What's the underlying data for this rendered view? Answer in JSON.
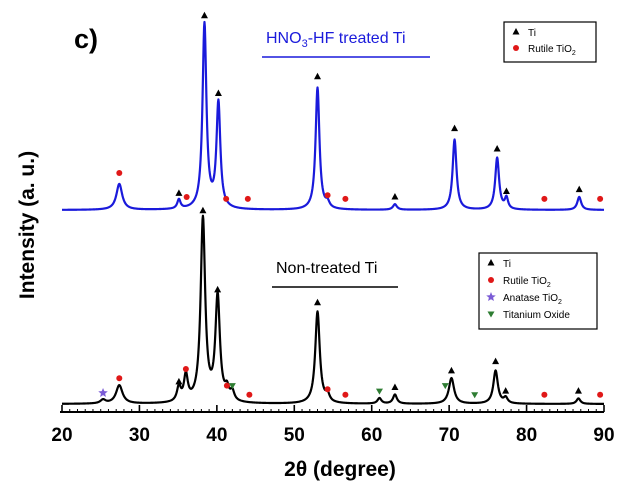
{
  "chart_data": {
    "type": "line",
    "panel_label": "c)",
    "xlabel": "2θ (degree)",
    "ylabel": "Intensity (a. u.)",
    "xlim": [
      20,
      90
    ],
    "xticks": [
      20,
      30,
      40,
      50,
      60,
      70,
      80,
      90
    ],
    "grid": false,
    "series": [
      {
        "name": "HNO3-HF treated Ti",
        "title_parts": [
          "HNO",
          "3",
          "-HF treated Ti"
        ],
        "color": "#1a1adb",
        "baseline": 0.0,
        "peaks": [
          {
            "x": 27.4,
            "h": 0.14,
            "w": 0.45
          },
          {
            "x": 35.1,
            "h": 0.05,
            "w": 0.25
          },
          {
            "x": 38.4,
            "h": 1.0,
            "w": 0.3
          },
          {
            "x": 40.2,
            "h": 0.57,
            "w": 0.3
          },
          {
            "x": 53.0,
            "h": 0.66,
            "w": 0.3
          },
          {
            "x": 54.3,
            "h": 0.03,
            "w": 0.3
          },
          {
            "x": 63.0,
            "h": 0.03,
            "w": 0.3
          },
          {
            "x": 70.7,
            "h": 0.38,
            "w": 0.3
          },
          {
            "x": 76.2,
            "h": 0.28,
            "w": 0.3
          },
          {
            "x": 77.4,
            "h": 0.06,
            "w": 0.25
          },
          {
            "x": 86.8,
            "h": 0.07,
            "w": 0.3
          }
        ],
        "markers": [
          {
            "x": 27.4,
            "y": 0.2,
            "kind": "rutile"
          },
          {
            "x": 35.1,
            "y": 0.09,
            "kind": "ti"
          },
          {
            "x": 36.1,
            "y": 0.07,
            "kind": "rutile"
          },
          {
            "x": 38.4,
            "y": 1.05,
            "kind": "ti"
          },
          {
            "x": 40.2,
            "y": 0.63,
            "kind": "ti"
          },
          {
            "x": 41.2,
            "y": 0.06,
            "kind": "rutile"
          },
          {
            "x": 44.0,
            "y": 0.06,
            "kind": "rutile"
          },
          {
            "x": 53.0,
            "y": 0.72,
            "kind": "ti"
          },
          {
            "x": 54.3,
            "y": 0.08,
            "kind": "rutile"
          },
          {
            "x": 56.6,
            "y": 0.06,
            "kind": "rutile"
          },
          {
            "x": 63.0,
            "y": 0.07,
            "kind": "ti"
          },
          {
            "x": 70.7,
            "y": 0.44,
            "kind": "ti"
          },
          {
            "x": 76.2,
            "y": 0.33,
            "kind": "ti"
          },
          {
            "x": 77.4,
            "y": 0.1,
            "kind": "ti"
          },
          {
            "x": 82.3,
            "y": 0.06,
            "kind": "rutile"
          },
          {
            "x": 86.8,
            "y": 0.11,
            "kind": "ti"
          },
          {
            "x": 89.5,
            "y": 0.06,
            "kind": "rutile"
          }
        ]
      },
      {
        "name": "Non-treated Ti",
        "title_parts": [
          "Non-treated Ti"
        ],
        "color": "#000000",
        "baseline": 0.0,
        "peaks": [
          {
            "x": 25.3,
            "h": 0.02,
            "w": 0.4
          },
          {
            "x": 27.4,
            "h": 0.1,
            "w": 0.5
          },
          {
            "x": 35.1,
            "h": 0.08,
            "w": 0.3
          },
          {
            "x": 36.0,
            "h": 0.14,
            "w": 0.3
          },
          {
            "x": 38.2,
            "h": 1.0,
            "w": 0.35
          },
          {
            "x": 40.1,
            "h": 0.57,
            "w": 0.35
          },
          {
            "x": 41.3,
            "h": 0.06,
            "w": 0.3
          },
          {
            "x": 42.0,
            "h": 0.05,
            "w": 0.3
          },
          {
            "x": 53.0,
            "h": 0.5,
            "w": 0.35
          },
          {
            "x": 54.3,
            "h": 0.04,
            "w": 0.3
          },
          {
            "x": 61.0,
            "h": 0.03,
            "w": 0.3
          },
          {
            "x": 63.0,
            "h": 0.05,
            "w": 0.3
          },
          {
            "x": 70.3,
            "h": 0.14,
            "w": 0.4
          },
          {
            "x": 76.0,
            "h": 0.18,
            "w": 0.35
          },
          {
            "x": 77.3,
            "h": 0.03,
            "w": 0.3
          },
          {
            "x": 86.7,
            "h": 0.03,
            "w": 0.3
          }
        ],
        "markers": [
          {
            "x": 25.3,
            "y": 0.06,
            "kind": "anatase"
          },
          {
            "x": 27.4,
            "y": 0.14,
            "kind": "rutile"
          },
          {
            "x": 35.1,
            "y": 0.12,
            "kind": "ti"
          },
          {
            "x": 36.0,
            "y": 0.19,
            "kind": "rutile"
          },
          {
            "x": 38.2,
            "y": 1.05,
            "kind": "ti"
          },
          {
            "x": 40.1,
            "y": 0.62,
            "kind": "ti"
          },
          {
            "x": 41.3,
            "y": 0.1,
            "kind": "rutile"
          },
          {
            "x": 42.0,
            "y": 0.1,
            "kind": "oxide"
          },
          {
            "x": 44.2,
            "y": 0.05,
            "kind": "rutile"
          },
          {
            "x": 53.0,
            "y": 0.55,
            "kind": "ti"
          },
          {
            "x": 54.3,
            "y": 0.08,
            "kind": "rutile"
          },
          {
            "x": 56.6,
            "y": 0.05,
            "kind": "rutile"
          },
          {
            "x": 61.0,
            "y": 0.07,
            "kind": "oxide"
          },
          {
            "x": 63.0,
            "y": 0.09,
            "kind": "ti"
          },
          {
            "x": 69.5,
            "y": 0.1,
            "kind": "oxide"
          },
          {
            "x": 70.3,
            "y": 0.18,
            "kind": "ti"
          },
          {
            "x": 73.3,
            "y": 0.05,
            "kind": "oxide"
          },
          {
            "x": 76.0,
            "y": 0.23,
            "kind": "ti"
          },
          {
            "x": 77.3,
            "y": 0.07,
            "kind": "ti"
          },
          {
            "x": 82.3,
            "y": 0.05,
            "kind": "rutile"
          },
          {
            "x": 86.7,
            "y": 0.07,
            "kind": "ti"
          },
          {
            "x": 89.5,
            "y": 0.05,
            "kind": "rutile"
          }
        ]
      }
    ],
    "legends": [
      {
        "placement": "top-right",
        "entries": [
          {
            "kind": "ti",
            "label": "Ti",
            "sub": ""
          },
          {
            "kind": "rutile",
            "label": "Rutile TiO",
            "sub": "2"
          }
        ]
      },
      {
        "placement": "middle-right",
        "entries": [
          {
            "kind": "ti",
            "label": "Ti",
            "sub": ""
          },
          {
            "kind": "rutile",
            "label": "Rutile TiO",
            "sub": "2"
          },
          {
            "kind": "anatase",
            "label": "Anatase TiO",
            "sub": "2"
          },
          {
            "kind": "oxide",
            "label": "Titanium Oxide",
            "sub": ""
          }
        ]
      }
    ],
    "marker_colors": {
      "ti": "#000000",
      "rutile": "#e01818",
      "anatase": "#7b5cd6",
      "oxide": "#2e7d32"
    }
  }
}
